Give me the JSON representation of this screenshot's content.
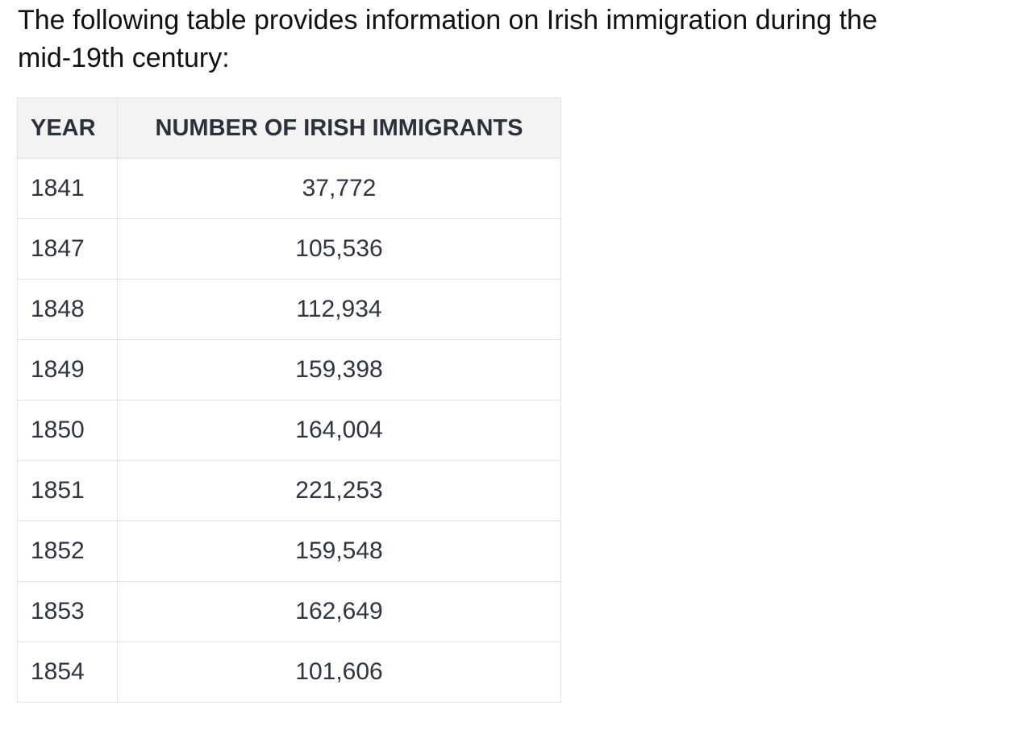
{
  "intro_text": "The following table provides information on Irish immigration during the mid-19th century:",
  "table": {
    "headers": [
      "YEAR",
      "NUMBER OF IRISH IMMIGRANTS"
    ],
    "rows": [
      [
        "1841",
        "37,772"
      ],
      [
        "1847",
        "105,536"
      ],
      [
        "1848",
        "112,934"
      ],
      [
        "1849",
        "159,398"
      ],
      [
        "1850",
        "164,004"
      ],
      [
        "1851",
        "221,253"
      ],
      [
        "1852",
        "159,548"
      ],
      [
        "1853",
        "162,649"
      ],
      [
        "1854",
        "101,606"
      ]
    ]
  },
  "colors": {
    "header_background": "#f3f3f3",
    "border": "#e2e2e2",
    "text": "#2f3640"
  }
}
